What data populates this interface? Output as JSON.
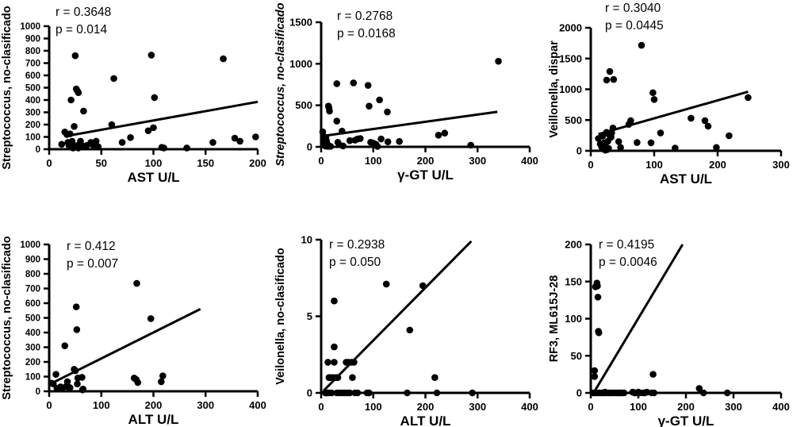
{
  "figure": {
    "background": "#ffffff",
    "ink_color": "#000000",
    "description": "Six scatter plots correlating gut bacteria abundance with liver enzyme levels"
  },
  "chart_data": [
    {
      "type": "scatter",
      "ylabel": "Streptococcus, no-clasificado",
      "ylabel_italic": false,
      "xlabel": "AST U/L",
      "xlim": [
        0,
        200
      ],
      "ylim": [
        0,
        1000
      ],
      "xticks": [
        0,
        50,
        100,
        150,
        200
      ],
      "yticks": [
        0,
        100,
        200,
        300,
        400,
        500,
        600,
        700,
        800,
        900,
        1000
      ],
      "annotation": {
        "r_label": "r = 0.3648",
        "p_label": "p = 0.014"
      },
      "trend_line": {
        "x1": 15,
        "y1": 105,
        "x2": 200,
        "y2": 385
      },
      "points": [
        [
          12,
          40
        ],
        [
          15,
          140
        ],
        [
          17,
          120
        ],
        [
          18,
          55
        ],
        [
          19,
          30
        ],
        [
          20,
          125
        ],
        [
          21,
          400
        ],
        [
          22,
          65
        ],
        [
          22,
          30
        ],
        [
          23,
          10
        ],
        [
          24,
          185
        ],
        [
          25,
          760
        ],
        [
          26,
          490
        ],
        [
          27,
          475
        ],
        [
          27,
          30
        ],
        [
          28,
          460
        ],
        [
          28,
          10
        ],
        [
          30,
          40
        ],
        [
          30,
          65
        ],
        [
          33,
          310
        ],
        [
          34,
          25
        ],
        [
          36,
          30
        ],
        [
          40,
          55
        ],
        [
          42,
          35
        ],
        [
          45,
          65
        ],
        [
          47,
          20
        ],
        [
          60,
          200
        ],
        [
          62,
          575
        ],
        [
          70,
          55
        ],
        [
          78,
          95
        ],
        [
          95,
          150
        ],
        [
          98,
          765
        ],
        [
          100,
          175
        ],
        [
          101,
          420
        ],
        [
          108,
          15
        ],
        [
          110,
          10
        ],
        [
          132,
          10
        ],
        [
          157,
          55
        ],
        [
          167,
          735
        ],
        [
          178,
          90
        ],
        [
          183,
          65
        ],
        [
          198,
          100
        ]
      ]
    },
    {
      "type": "scatter",
      "ylabel": "Streptococcus, no-clasificado",
      "ylabel_italic": true,
      "xlabel": "γ-GT U/L",
      "xlim": [
        0,
        400
      ],
      "ylim": [
        0,
        1500
      ],
      "xticks": [
        0,
        100,
        200,
        300,
        400
      ],
      "yticks": [
        0,
        500,
        1000,
        1500
      ],
      "annotation": {
        "r_label": "r = 0.2768",
        "p_label": "p = 0.0168"
      },
      "trend_line": {
        "x1": 0,
        "y1": 128,
        "x2": 338,
        "y2": 422
      },
      "points": [
        [
          3,
          180
        ],
        [
          4,
          130
        ],
        [
          5,
          90
        ],
        [
          6,
          55
        ],
        [
          7,
          30
        ],
        [
          8,
          10
        ],
        [
          9,
          110
        ],
        [
          10,
          75
        ],
        [
          11,
          45
        ],
        [
          12,
          25
        ],
        [
          13,
          5
        ],
        [
          14,
          490
        ],
        [
          15,
          470
        ],
        [
          16,
          430
        ],
        [
          18,
          5
        ],
        [
          30,
          760
        ],
        [
          30,
          310
        ],
        [
          32,
          55
        ],
        [
          35,
          25
        ],
        [
          40,
          190
        ],
        [
          42,
          10
        ],
        [
          55,
          75
        ],
        [
          62,
          770
        ],
        [
          65,
          80
        ],
        [
          70,
          95
        ],
        [
          75,
          100
        ],
        [
          90,
          740
        ],
        [
          92,
          490
        ],
        [
          95,
          55
        ],
        [
          100,
          45
        ],
        [
          105,
          30
        ],
        [
          108,
          5
        ],
        [
          112,
          565
        ],
        [
          115,
          95
        ],
        [
          127,
          420
        ],
        [
          128,
          60
        ],
        [
          150,
          65
        ],
        [
          225,
          140
        ],
        [
          237,
          165
        ],
        [
          287,
          20
        ],
        [
          340,
          1030
        ]
      ]
    },
    {
      "type": "scatter",
      "ylabel": "Veillonella, dispar",
      "ylabel_italic": false,
      "xlabel": "AST U/L",
      "xlim": [
        0,
        300
      ],
      "ylim": [
        0,
        2000
      ],
      "xticks": [
        0,
        100,
        200,
        300
      ],
      "yticks": [
        0,
        500,
        1000,
        1500,
        2000
      ],
      "annotation": {
        "r_label": "r = 0.3040",
        "p_label": "p = 0.0445"
      },
      "trend_line": {
        "x1": 12,
        "y1": 270,
        "x2": 248,
        "y2": 960
      },
      "points": [
        [
          12,
          200
        ],
        [
          15,
          110
        ],
        [
          17,
          70
        ],
        [
          18,
          45
        ],
        [
          19,
          240
        ],
        [
          20,
          30
        ],
        [
          21,
          130
        ],
        [
          22,
          90
        ],
        [
          23,
          10
        ],
        [
          24,
          60
        ],
        [
          25,
          1150
        ],
        [
          25,
          300
        ],
        [
          26,
          20
        ],
        [
          27,
          155
        ],
        [
          28,
          40
        ],
        [
          30,
          1290
        ],
        [
          30,
          250
        ],
        [
          32,
          220
        ],
        [
          33,
          290
        ],
        [
          35,
          370
        ],
        [
          36,
          1160
        ],
        [
          44,
          150
        ],
        [
          47,
          55
        ],
        [
          60,
          430
        ],
        [
          63,
          490
        ],
        [
          73,
          135
        ],
        [
          80,
          1715
        ],
        [
          95,
          130
        ],
        [
          98,
          945
        ],
        [
          100,
          835
        ],
        [
          110,
          290
        ],
        [
          133,
          45
        ],
        [
          158,
          530
        ],
        [
          180,
          490
        ],
        [
          185,
          400
        ],
        [
          198,
          55
        ],
        [
          218,
          245
        ],
        [
          248,
          865
        ]
      ]
    },
    {
      "type": "scatter",
      "ylabel": "Streptococcus, no-clasificado",
      "ylabel_italic": false,
      "xlabel": "ALT U/L",
      "xlim": [
        0,
        400
      ],
      "ylim": [
        0,
        1000
      ],
      "xticks": [
        0,
        100,
        200,
        300,
        400
      ],
      "yticks": [
        0,
        100,
        200,
        300,
        400,
        500,
        600,
        700,
        800,
        900,
        1000
      ],
      "annotation": {
        "r_label": "r = 0.412",
        "p_label": "p = 0.007"
      },
      "trend_line": {
        "x1": 5,
        "y1": 55,
        "x2": 290,
        "y2": 560
      },
      "points": [
        [
          5,
          55
        ],
        [
          8,
          50
        ],
        [
          13,
          115
        ],
        [
          15,
          20
        ],
        [
          18,
          15
        ],
        [
          20,
          25
        ],
        [
          22,
          30
        ],
        [
          25,
          20
        ],
        [
          30,
          310
        ],
        [
          33,
          35
        ],
        [
          35,
          65
        ],
        [
          36,
          30
        ],
        [
          40,
          25
        ],
        [
          48,
          150
        ],
        [
          50,
          140
        ],
        [
          52,
          575
        ],
        [
          53,
          420
        ],
        [
          54,
          50
        ],
        [
          55,
          90
        ],
        [
          63,
          95
        ],
        [
          64,
          10
        ],
        [
          65,
          15
        ],
        [
          163,
          90
        ],
        [
          167,
          80
        ],
        [
          168,
          735
        ],
        [
          170,
          60
        ],
        [
          195,
          495
        ],
        [
          215,
          65
        ],
        [
          218,
          105
        ]
      ]
    },
    {
      "type": "scatter",
      "ylabel": "Veilonella, no-clasificado",
      "ylabel_italic": false,
      "xlabel": "ALT U/L",
      "xlim": [
        0,
        400
      ],
      "ylim": [
        0,
        10
      ],
      "xticks": [
        0,
        100,
        200,
        300,
        400
      ],
      "yticks": [
        0,
        5,
        10
      ],
      "annotation": {
        "r_label": "r = 0.2938",
        "p_label": "p = 0.050"
      },
      "trend_line": {
        "x1": 5,
        "y1": 0.15,
        "x2": 288,
        "y2": 9.9
      },
      "points": [
        [
          8,
          0
        ],
        [
          10,
          0
        ],
        [
          12,
          0
        ],
        [
          13,
          2
        ],
        [
          15,
          0
        ],
        [
          15,
          1
        ],
        [
          17,
          1
        ],
        [
          25,
          3
        ],
        [
          20,
          0
        ],
        [
          22,
          1
        ],
        [
          25,
          6
        ],
        [
          25,
          2
        ],
        [
          28,
          1
        ],
        [
          30,
          0
        ],
        [
          32,
          1
        ],
        [
          35,
          0
        ],
        [
          40,
          0
        ],
        [
          45,
          0
        ],
        [
          48,
          2
        ],
        [
          50,
          0
        ],
        [
          52,
          2
        ],
        [
          55,
          0
        ],
        [
          58,
          2
        ],
        [
          60,
          1
        ],
        [
          63,
          2
        ],
        [
          65,
          0
        ],
        [
          70,
          0
        ],
        [
          88,
          0
        ],
        [
          92,
          0
        ],
        [
          125,
          7.1
        ],
        [
          165,
          0
        ],
        [
          170,
          4.1
        ],
        [
          195,
          7
        ],
        [
          218,
          1
        ],
        [
          222,
          0
        ],
        [
          290,
          0
        ]
      ]
    },
    {
      "type": "scatter",
      "ylabel": "RF3, ML615J-28",
      "ylabel_italic": false,
      "xlabel": "γ-GT U/L",
      "xlim": [
        0,
        400
      ],
      "ylim": [
        0,
        200
      ],
      "xticks": [
        0,
        100,
        200,
        300,
        400
      ],
      "yticks": [
        0,
        50,
        100,
        150,
        200
      ],
      "annotation": {
        "r_label": "r = 0.4195",
        "p_label": "p = 0.0046"
      },
      "trend_line": {
        "x1": 6,
        "y1": 0,
        "x2": 193,
        "y2": 200
      },
      "points": [
        [
          5,
          0
        ],
        [
          8,
          22
        ],
        [
          8,
          30
        ],
        [
          8,
          0
        ],
        [
          10,
          143
        ],
        [
          12,
          0
        ],
        [
          13,
          148
        ],
        [
          14,
          144
        ],
        [
          15,
          129
        ],
        [
          16,
          83
        ],
        [
          17,
          81
        ],
        [
          18,
          0
        ],
        [
          22,
          0
        ],
        [
          25,
          0
        ],
        [
          28,
          0
        ],
        [
          30,
          1
        ],
        [
          33,
          0
        ],
        [
          38,
          0
        ],
        [
          42,
          0
        ],
        [
          45,
          0
        ],
        [
          50,
          0
        ],
        [
          55,
          0
        ],
        [
          58,
          0
        ],
        [
          60,
          0
        ],
        [
          63,
          0
        ],
        [
          65,
          0
        ],
        [
          70,
          0
        ],
        [
          88,
          1
        ],
        [
          92,
          0
        ],
        [
          95,
          0
        ],
        [
          100,
          1
        ],
        [
          103,
          0
        ],
        [
          110,
          0
        ],
        [
          113,
          0
        ],
        [
          118,
          1
        ],
        [
          128,
          0
        ],
        [
          131,
          25
        ],
        [
          133,
          0
        ],
        [
          228,
          6
        ],
        [
          237,
          0
        ],
        [
          287,
          0
        ]
      ]
    }
  ]
}
